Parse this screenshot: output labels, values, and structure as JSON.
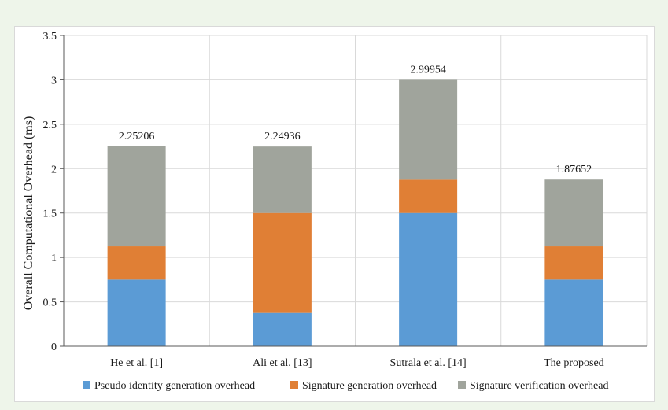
{
  "chart_data": {
    "type": "bar",
    "stacked": true,
    "categories": [
      "He et al. [1]",
      "Ali et al. [13]",
      "Sutrala et al. [14]",
      "The proposed"
    ],
    "series": [
      {
        "name": "Pseudo identity generation overhead",
        "color": "#5b9bd5",
        "values": [
          0.75,
          0.375,
          1.5,
          0.75
        ]
      },
      {
        "name": "Signature generation overhead",
        "color": "#e07f35",
        "values": [
          0.375,
          1.125,
          0.375,
          0.375
        ]
      },
      {
        "name": "Signature verification overhead",
        "color": "#a0a49c",
        "values": [
          1.12706,
          0.74936,
          1.12454,
          0.75152
        ]
      }
    ],
    "totals": [
      "2.25206",
      "2.24936",
      "2.99954",
      "1.87652"
    ],
    "xlabel": "",
    "ylabel": "Overall Computational Overhead (ms)",
    "ylim": [
      0,
      3.5
    ],
    "yticks": [
      "0",
      "0.5",
      "1",
      "1.5",
      "2",
      "2.5",
      "3",
      "3.5"
    ],
    "ytick_values": [
      0,
      0.5,
      1,
      1.5,
      2,
      2.5,
      3,
      3.5
    ],
    "grid": true,
    "legend_position": "bottom"
  }
}
